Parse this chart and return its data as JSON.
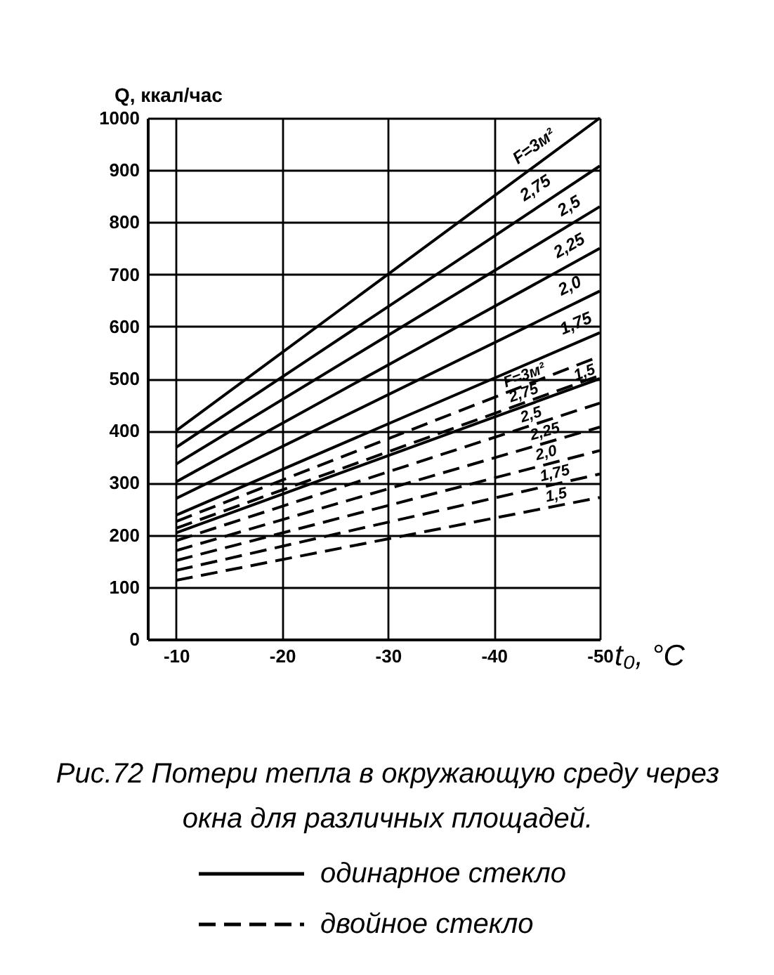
{
  "chart_data": {
    "type": "line",
    "title": "Рис.72 Потери тепла в окружающую среду через окна для различных площадей.",
    "xlabel": "t₀, °C",
    "ylabel": "Q, ккал/час",
    "x": [
      -10,
      -50
    ],
    "xlim": [
      -7.3,
      -50
    ],
    "xticks": [
      -10,
      -20,
      -30,
      -40,
      -50
    ],
    "ylim": [
      0,
      1000
    ],
    "yticks": [
      0,
      100,
      200,
      300,
      400,
      500,
      600,
      700,
      800,
      900,
      1000
    ],
    "grid": true,
    "legend": "bottom",
    "series": [
      {
        "name": "одинарное стекло",
        "color": "#000000",
        "line_style": "solid",
        "values": [
          400,
          1000
        ]
      },
      {
        "color": "#000000",
        "line_style": "solid",
        "values": [
          368,
          908
        ]
      },
      {
        "color": "#000000",
        "line_style": "solid",
        "values": [
          336,
          830
        ]
      },
      {
        "color": "#000000",
        "line_style": "solid",
        "values": [
          302,
          750
        ]
      },
      {
        "color": "#000000",
        "line_style": "solid",
        "values": [
          270,
          668
        ]
      },
      {
        "color": "#000000",
        "line_style": "solid",
        "values": [
          238,
          588
        ]
      },
      {
        "color": "#000000",
        "line_style": "solid",
        "values": [
          204,
          500
        ]
      },
      {
        "name": "двойное стекло",
        "color": "#000000",
        "line_style": "dashed",
        "values": [
          226,
          543
        ]
      },
      {
        "color": "#000000",
        "line_style": "dashed",
        "values": [
          213,
          506
        ]
      },
      {
        "color": "#000000",
        "line_style": "dashed",
        "values": [
          189,
          453
        ]
      },
      {
        "color": "#000000",
        "line_style": "dashed",
        "values": [
          170,
          407
        ]
      },
      {
        "color": "#000000",
        "line_style": "dashed",
        "values": [
          151,
          362
        ]
      },
      {
        "color": "#000000",
        "line_style": "dashed",
        "values": [
          132,
          317
        ]
      },
      {
        "color": "#000000",
        "line_style": "dashed",
        "values": [
          113,
          272
        ]
      }
    ],
    "annotations": [
      {
        "text": "F=3м²",
        "x": -44.7,
        "y": 920
      },
      {
        "text": "2,75",
        "x": -44.8,
        "y": 838
      },
      {
        "text": "2,5",
        "x": -47.9,
        "y": 804
      },
      {
        "text": "2,25",
        "x": -47.9,
        "y": 726
      },
      {
        "text": "2,0",
        "x": -47.9,
        "y": 647
      },
      {
        "text": "1,75",
        "x": -48.4,
        "y": 574
      },
      {
        "text": "1,5",
        "x": -48.9,
        "y": 492
      },
      {
        "text": "F=3м²",
        "x": -43.2,
        "y": 489
      },
      {
        "text": "2,75",
        "x": -43.1,
        "y": 455
      },
      {
        "text": "2,5",
        "x": -43.8,
        "y": 412
      },
      {
        "text": "2,25",
        "x": -45.1,
        "y": 378
      },
      {
        "text": "2,0",
        "x": -45.2,
        "y": 337
      },
      {
        "text": "1,75",
        "x": -46,
        "y": 298
      },
      {
        "text": "1,5",
        "x": -46.1,
        "y": 256
      }
    ]
  }
}
